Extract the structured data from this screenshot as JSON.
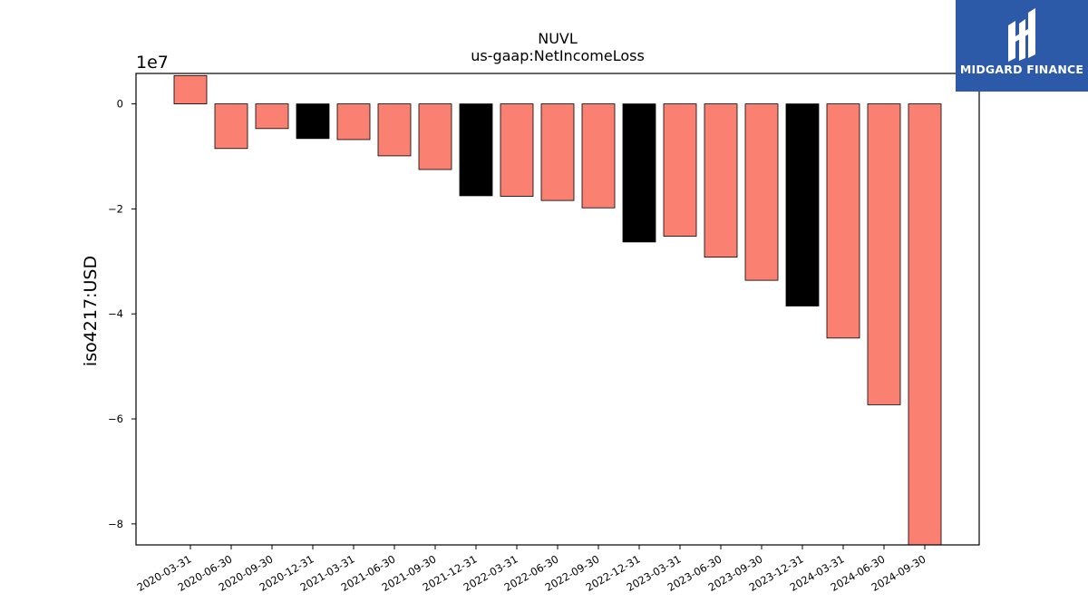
{
  "chart_data": {
    "type": "bar",
    "title": "NUVL",
    "subtitle": "us-gaap:NetIncomeLoss",
    "ylabel": "iso4217:USD",
    "y_offset_label": "1e7",
    "y_scale": 10000000,
    "ylim": [
      -84000000,
      5800000
    ],
    "yticks": [
      0,
      -20000000,
      -40000000,
      -60000000,
      -80000000
    ],
    "ytick_labels": [
      "0",
      "−2",
      "−4",
      "−6",
      "−8"
    ],
    "categories": [
      "2020-03-31",
      "2020-06-30",
      "2020-09-30",
      "2020-12-31",
      "2021-03-31",
      "2021-06-30",
      "2021-09-30",
      "2021-12-31",
      "2022-03-31",
      "2022-06-30",
      "2022-09-30",
      "2022-12-31",
      "2023-03-31",
      "2023-06-30",
      "2023-09-30",
      "2023-12-31",
      "2024-03-31",
      "2024-06-30",
      "2024-09-30"
    ],
    "values": [
      5400000,
      -8500000,
      -4700000,
      -6600000,
      -6800000,
      -9900000,
      -12500000,
      -17500000,
      -17600000,
      -18400000,
      -19800000,
      -26300000,
      -25200000,
      -29200000,
      -33600000,
      -38500000,
      -44600000,
      -57300000,
      -84000000
    ],
    "bar_colors": [
      "#fa8072",
      "#fa8072",
      "#fa8072",
      "#000000",
      "#fa8072",
      "#fa8072",
      "#fa8072",
      "#000000",
      "#fa8072",
      "#fa8072",
      "#fa8072",
      "#000000",
      "#fa8072",
      "#fa8072",
      "#fa8072",
      "#000000",
      "#fa8072",
      "#fa8072",
      "#fa8072"
    ],
    "grid": false,
    "legend": "none"
  },
  "logo": {
    "text": "MIDGARD FINANCE",
    "background": "#2c59a8"
  }
}
